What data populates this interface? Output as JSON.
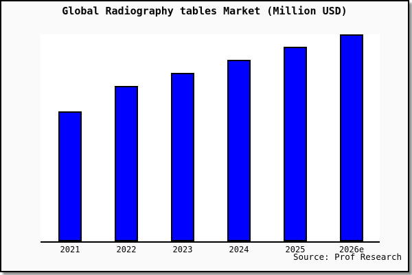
{
  "chart_data": {
    "type": "bar",
    "title": "Global Radiography tables Market (Million USD)",
    "categories": [
      "2021",
      "2022",
      "2023",
      "2024",
      "2025",
      "2026e"
    ],
    "values": [
      62.8,
      75.1,
      81.5,
      87.8,
      93.9,
      100
    ],
    "value_note": "y-axis has no tick labels; values are relative bar heights normalized so the tallest bar (2026e) = 100",
    "xlabel": "",
    "ylabel": "",
    "ylim": [
      0,
      100
    ],
    "grid": false,
    "legend": "none",
    "source": "Source: Prof Research",
    "colors": {
      "bar_fill": "#0000ff",
      "bar_border": "#000000",
      "axis": "#000000",
      "plot_background": "#ffffff",
      "panel_background": "#fafafa",
      "text": "#000000"
    }
  }
}
